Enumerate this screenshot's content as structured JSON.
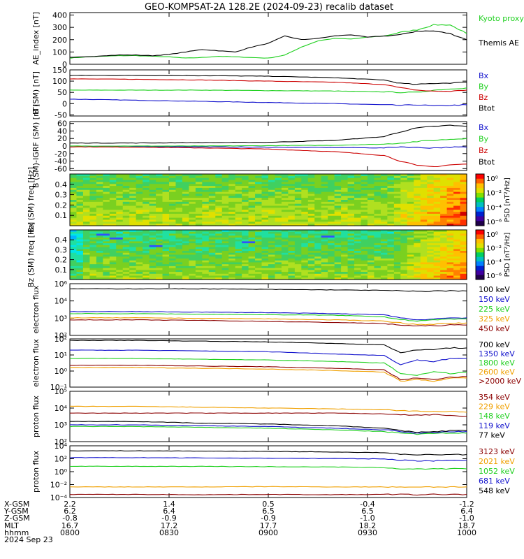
{
  "title": "GEO-KOMPSAT-2A 128.2E (2024-09-23) recalib dataset",
  "colors": {
    "black": "#000000",
    "red": "#cc0000",
    "green": "#1fd01f",
    "blue": "#1010cc",
    "orange": "#f0a000",
    "darkred": "#8b0000",
    "yellow": "#d4b000"
  },
  "chart_data": [
    {
      "type": "line",
      "ylabel": "AE_index [nT]",
      "ylim": [
        0,
        420
      ],
      "yticks": [
        "0",
        "100",
        "200",
        "300",
        "400"
      ],
      "series": [
        {
          "name": "Kyoto proxy AE",
          "color": "#1fd01f",
          "x": [
            0,
            5,
            10,
            15,
            20,
            25,
            30,
            35,
            40,
            45,
            50,
            55,
            60,
            65,
            70,
            75,
            80,
            85,
            90,
            95,
            100,
            105,
            110,
            115,
            120
          ],
          "values": [
            50,
            60,
            65,
            70,
            70,
            65,
            60,
            50,
            55,
            65,
            60,
            55,
            50,
            75,
            140,
            190,
            210,
            205,
            220,
            230,
            260,
            280,
            320,
            320,
            250
          ]
        },
        {
          "name": "Themis AE",
          "color": "#000000",
          "x": [
            0,
            5,
            10,
            15,
            20,
            25,
            30,
            35,
            40,
            45,
            50,
            55,
            60,
            65,
            70,
            75,
            80,
            85,
            90,
            95,
            100,
            105,
            110,
            115,
            120
          ],
          "values": [
            55,
            60,
            70,
            75,
            75,
            70,
            80,
            100,
            120,
            110,
            100,
            140,
            170,
            230,
            200,
            210,
            230,
            240,
            220,
            230,
            240,
            270,
            270,
            250,
            200
          ]
        }
      ]
    },
    {
      "type": "line",
      "ylabel": "B (SM) [nT]",
      "ylim": [
        -55,
        150
      ],
      "yticks": [
        "-50",
        "0",
        "50",
        "100",
        "150"
      ],
      "series": [
        {
          "name": "Bx",
          "color": "#1010cc",
          "x": [
            0,
            20,
            40,
            60,
            80,
            95,
            100,
            105,
            110,
            115,
            120
          ],
          "values": [
            20,
            15,
            10,
            5,
            0,
            -5,
            -8,
            -5,
            -10,
            -8,
            -5
          ]
        },
        {
          "name": "By",
          "color": "#1fd01f",
          "x": [
            0,
            20,
            40,
            60,
            80,
            95,
            100,
            105,
            110,
            115,
            120
          ],
          "values": [
            60,
            60,
            60,
            58,
            56,
            52,
            50,
            50,
            60,
            65,
            70
          ]
        },
        {
          "name": "Bz",
          "color": "#cc0000",
          "x": [
            0,
            20,
            40,
            60,
            80,
            95,
            100,
            105,
            110,
            115,
            120
          ],
          "values": [
            110,
            108,
            105,
            100,
            95,
            85,
            70,
            60,
            55,
            55,
            60
          ]
        },
        {
          "name": "Btot",
          "color": "#000000",
          "x": [
            0,
            20,
            40,
            60,
            80,
            95,
            100,
            105,
            110,
            115,
            120
          ],
          "values": [
            125,
            125,
            124,
            122,
            115,
            105,
            90,
            85,
            90,
            92,
            95
          ]
        }
      ]
    },
    {
      "type": "line",
      "ylabel": "B (SM)-IGRF (SM) [nT]",
      "ylim": [
        -65,
        65
      ],
      "yticks": [
        "-60",
        "-40",
        "-20",
        "0",
        "20",
        "40",
        "60"
      ],
      "series": [
        {
          "name": "Bx",
          "color": "#1010cc",
          "x": [
            0,
            20,
            40,
            60,
            80,
            95,
            100,
            105,
            110,
            115,
            120
          ],
          "values": [
            0,
            -1,
            -2,
            -3,
            -4,
            -5,
            -2,
            -4,
            -5,
            -3,
            -3
          ]
        },
        {
          "name": "By",
          "color": "#1fd01f",
          "x": [
            0,
            20,
            40,
            60,
            80,
            95,
            100,
            105,
            110,
            115,
            120
          ],
          "values": [
            0,
            0,
            0,
            1,
            2,
            5,
            8,
            12,
            15,
            18,
            20
          ]
        },
        {
          "name": "Bz",
          "color": "#cc0000",
          "x": [
            0,
            20,
            40,
            60,
            80,
            95,
            100,
            105,
            110,
            115,
            120
          ],
          "values": [
            -2,
            -3,
            -5,
            -8,
            -15,
            -25,
            -40,
            -52,
            -55,
            -50,
            -48
          ]
        },
        {
          "name": "Btot",
          "color": "#000000",
          "x": [
            0,
            20,
            40,
            60,
            80,
            95,
            100,
            105,
            110,
            115,
            120
          ],
          "values": [
            8,
            8,
            9,
            10,
            15,
            25,
            38,
            48,
            52,
            55,
            52
          ]
        }
      ]
    },
    {
      "type": "heatmap",
      "ylabel": "Bx (SM) freq [Hz]",
      "yticks": [
        "0.1",
        "0.2",
        "0.3",
        "0.4"
      ],
      "colorbar_label": "PSD [nT²/Hz]",
      "colorbar_ticks": [
        "10⁰",
        "10⁻²",
        "10⁻⁴",
        "10⁻⁶"
      ]
    },
    {
      "type": "heatmap",
      "ylabel": "Bz (SM) freq [Hz]",
      "yticks": [
        "0.1",
        "0.2",
        "0.3",
        "0.4"
      ],
      "colorbar_label": "PSD [nT²/Hz]",
      "colorbar_ticks": [
        "10⁰",
        "10⁻²",
        "10⁻⁴",
        "10⁻⁶"
      ]
    },
    {
      "type": "line",
      "ylabel": "electron flux",
      "yscale": "log",
      "ylim": [
        1,
        6
      ],
      "yticks": [
        "10⁶",
        "10⁴",
        "10³",
        "10²"
      ],
      "series": [
        {
          "name": "100 keV",
          "color": "#000000",
          "x": [
            0,
            20,
            40,
            60,
            80,
            95,
            100,
            105,
            110,
            115,
            120
          ],
          "values": [
            5.5,
            5.5,
            5.5,
            5.45,
            5.4,
            5.35,
            5.3,
            5.25,
            5.3,
            5.3,
            5.3
          ]
        },
        {
          "name": "150 keV",
          "color": "#1010cc",
          "x": [
            0,
            20,
            40,
            60,
            80,
            95,
            100,
            105,
            110,
            115,
            120
          ],
          "values": [
            3.3,
            3.3,
            3.25,
            3.2,
            3.1,
            3.0,
            2.7,
            2.5,
            2.6,
            2.7,
            2.7
          ]
        },
        {
          "name": "225 keV",
          "color": "#1fd01f",
          "x": [
            0,
            20,
            40,
            60,
            80,
            95,
            100,
            105,
            110,
            115,
            120
          ],
          "values": [
            3.1,
            3.1,
            3.05,
            3.0,
            2.95,
            2.8,
            2.55,
            2.4,
            2.5,
            2.55,
            2.6
          ]
        },
        {
          "name": "325 keV",
          "color": "#f0a000",
          "x": [
            0,
            20,
            40,
            60,
            80,
            95,
            100,
            105,
            110,
            115,
            120
          ],
          "values": [
            2.7,
            2.7,
            2.65,
            2.6,
            2.5,
            2.4,
            2.2,
            2.05,
            2.1,
            2.15,
            2.2
          ]
        },
        {
          "name": "450 keV",
          "color": "#8b0000",
          "x": [
            0,
            20,
            40,
            60,
            80,
            95,
            100,
            105,
            110,
            115,
            120
          ],
          "values": [
            2.5,
            2.5,
            2.45,
            2.35,
            2.25,
            2.15,
            2.0,
            1.9,
            1.95,
            2.0,
            2.0
          ]
        }
      ]
    },
    {
      "type": "line",
      "ylabel": "electron flux",
      "yscale": "log",
      "ylim": [
        -1.2,
        2
      ],
      "yticks": [
        "10²",
        "10¹",
        "10⁰",
        "10⁻¹"
      ],
      "series": [
        {
          "name": "700 keV",
          "color": "#000000",
          "x": [
            0,
            20,
            40,
            60,
            80,
            95,
            100,
            105,
            110,
            115,
            120
          ],
          "values": [
            1.9,
            1.9,
            1.85,
            1.8,
            1.7,
            1.6,
            1.1,
            1.25,
            1.3,
            1.4,
            1.4
          ]
        },
        {
          "name": "1350 keV",
          "color": "#1010cc",
          "x": [
            0,
            20,
            40,
            60,
            80,
            95,
            100,
            105,
            110,
            115,
            120
          ],
          "values": [
            1.25,
            1.25,
            1.2,
            1.15,
            1.0,
            0.9,
            0.3,
            0.6,
            0.5,
            0.7,
            0.7
          ]
        },
        {
          "name": "1800 keV",
          "color": "#1fd01f",
          "x": [
            0,
            20,
            40,
            60,
            80,
            95,
            100,
            105,
            110,
            115,
            120
          ],
          "values": [
            0.7,
            0.7,
            0.65,
            0.6,
            0.5,
            0.4,
            -0.3,
            -0.4,
            -0.2,
            -0.3,
            -0.2
          ]
        },
        {
          "name": "2600 keV",
          "color": "#f0a000",
          "x": [
            0,
            20,
            40,
            60,
            80,
            95,
            100,
            105,
            110,
            115,
            120
          ],
          "values": [
            0.1,
            0.1,
            0.05,
            0.0,
            -0.1,
            -0.2,
            -0.8,
            -0.7,
            -0.8,
            -0.6,
            -0.6
          ]
        },
        {
          "name": ">2000 keV",
          "color": "#8b0000",
          "x": [
            0,
            20,
            40,
            60,
            80,
            95,
            100,
            105,
            110,
            115,
            120
          ],
          "values": [
            0.25,
            0.25,
            0.2,
            0.15,
            0.05,
            -0.05,
            -0.7,
            -0.6,
            -0.7,
            -0.55,
            -0.5
          ]
        }
      ]
    },
    {
      "type": "line",
      "ylabel": "proton flux",
      "yscale": "log",
      "ylim": [
        2,
        5
      ],
      "yticks": [
        "10⁵",
        "10⁴",
        "10³",
        "10²"
      ],
      "series": [
        {
          "name": "354 keV",
          "color": "#8b0000",
          "x": [
            0,
            20,
            40,
            60,
            80,
            95,
            100,
            105,
            110,
            115,
            120
          ],
          "values": [
            3.7,
            3.7,
            3.7,
            3.7,
            3.7,
            3.65,
            3.6,
            3.6,
            3.6,
            3.55,
            3.5
          ]
        },
        {
          "name": "229 keV",
          "color": "#f0a000",
          "x": [
            0,
            20,
            40,
            60,
            80,
            95,
            100,
            105,
            110,
            115,
            120
          ],
          "values": [
            4.1,
            4.1,
            4.05,
            4.0,
            3.95,
            3.9,
            3.85,
            3.8,
            3.8,
            3.8,
            3.75
          ]
        },
        {
          "name": "148 keV",
          "color": "#1fd01f",
          "x": [
            0,
            20,
            40,
            60,
            80,
            95,
            100,
            105,
            110,
            115,
            120
          ],
          "values": [
            2.9,
            2.9,
            2.85,
            2.8,
            2.7,
            2.6,
            2.5,
            2.45,
            2.5,
            2.5,
            2.5
          ]
        },
        {
          "name": "119 keV",
          "color": "#1010cc",
          "x": [
            0,
            20,
            40,
            60,
            80,
            95,
            100,
            105,
            110,
            115,
            120
          ],
          "values": [
            3.0,
            3.0,
            2.95,
            2.9,
            2.8,
            2.7,
            2.6,
            2.5,
            2.55,
            2.6,
            2.6
          ]
        },
        {
          "name": "77 keV",
          "color": "#000000",
          "x": [
            0,
            20,
            40,
            60,
            80,
            95,
            100,
            105,
            110,
            115,
            120
          ],
          "values": [
            3.2,
            3.2,
            3.1,
            3.05,
            2.95,
            2.8,
            2.65,
            2.55,
            2.6,
            2.65,
            2.65
          ]
        }
      ]
    },
    {
      "type": "line",
      "ylabel": "proton flux",
      "yscale": "log",
      "ylim": [
        -4.3,
        4
      ],
      "yticks": [
        "10⁴",
        "10²",
        "10⁰",
        "10⁻²",
        "10⁻⁴"
      ],
      "series": [
        {
          "name": "3123 keV",
          "color": "#8b0000",
          "x": [
            0,
            20,
            40,
            60,
            80,
            95,
            100,
            105,
            110,
            115,
            120
          ],
          "values": [
            -3.8,
            -3.8,
            -3.85,
            -3.8,
            -3.85,
            -3.8,
            -3.8,
            -3.85,
            -3.8,
            -3.8,
            -3.8
          ]
        },
        {
          "name": "2021 keV",
          "color": "#f0a000",
          "x": [
            0,
            20,
            40,
            60,
            80,
            95,
            100,
            105,
            110,
            115,
            120
          ],
          "values": [
            -2.6,
            -2.6,
            -2.6,
            -2.55,
            -2.6,
            -2.6,
            -2.6,
            -2.6,
            -2.6,
            -2.6,
            -2.6
          ]
        },
        {
          "name": "1052 keV",
          "color": "#1fd01f",
          "x": [
            0,
            20,
            40,
            60,
            80,
            95,
            100,
            105,
            110,
            115,
            120
          ],
          "values": [
            0.7,
            0.7,
            0.7,
            0.65,
            0.6,
            0.5,
            0.3,
            0.3,
            0.3,
            0.3,
            0.3
          ]
        },
        {
          "name": "681 keV",
          "color": "#1010cc",
          "x": [
            0,
            20,
            40,
            60,
            80,
            95,
            100,
            105,
            110,
            115,
            120
          ],
          "values": [
            2.1,
            2.1,
            2.05,
            2.0,
            1.95,
            1.9,
            1.7,
            1.6,
            1.6,
            1.65,
            1.7
          ]
        },
        {
          "name": "548 keV",
          "color": "#000000",
          "x": [
            0,
            20,
            40,
            60,
            80,
            95,
            100,
            105,
            110,
            115,
            120
          ],
          "values": [
            3.2,
            3.2,
            3.15,
            3.1,
            3.0,
            2.9,
            2.6,
            2.55,
            2.6,
            2.6,
            2.6
          ]
        }
      ]
    }
  ],
  "ephemeris": {
    "labels": [
      "X-GSM",
      "Y-GSM",
      "Z-GSM",
      "MLT",
      "hhmm",
      "2024 Sep 23"
    ],
    "columns": [
      [
        "2.2",
        "6.2",
        "-0.8",
        "16.7",
        "0800"
      ],
      [
        "1.4",
        "6.4",
        "-0.9",
        "17.2",
        "0830"
      ],
      [
        "0.5",
        "6.5",
        "-0.9",
        "17.7",
        "0900"
      ],
      [
        "-0.4",
        "6.5",
        "-1.0",
        "18.2",
        "0930"
      ],
      [
        "-1.2",
        "6.4",
        "-1.0",
        "18.7",
        "1000"
      ]
    ]
  }
}
